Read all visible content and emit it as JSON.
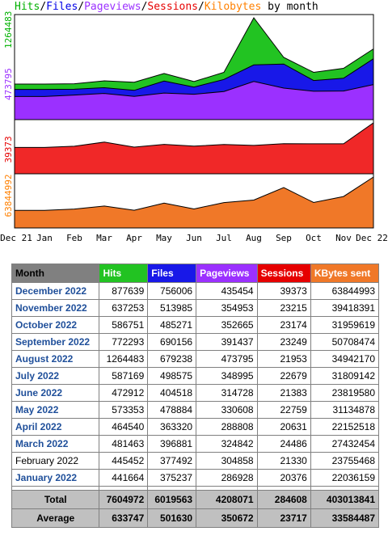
{
  "title": {
    "parts": [
      {
        "text": "Hits",
        "color": "#00b000"
      },
      {
        "text": "/",
        "color": "#000000"
      },
      {
        "text": "Files",
        "color": "#0000e6"
      },
      {
        "text": "/",
        "color": "#000000"
      },
      {
        "text": "Pageviews",
        "color": "#9b30ff"
      },
      {
        "text": "/",
        "color": "#000000"
      },
      {
        "text": "Sessions",
        "color": "#e60000"
      },
      {
        "text": "/",
        "color": "#000000"
      },
      {
        "text": "Kilobytes",
        "color": "#ff8000"
      },
      {
        "text": " by month",
        "color": "#000000"
      }
    ]
  },
  "chart_data": {
    "type": "area",
    "categories": [
      "Dec 21",
      "Jan",
      "Feb",
      "Mar",
      "Apr",
      "May",
      "Jun",
      "Jul",
      "Aug",
      "Sep",
      "Oct",
      "Nov",
      "Dec 22"
    ],
    "panels": [
      {
        "axis_label": "1264483",
        "axis_color": "#00b000",
        "ymax": 1264483,
        "series": [
          {
            "name": "Hits",
            "color": "#22c322",
            "values": [
              441664,
              441664,
              445452,
              481463,
              464540,
              573353,
              472912,
              587169,
              1264483,
              772293,
              586751,
              637253,
              877639
            ]
          },
          {
            "name": "Files",
            "color": "#1818e8",
            "values": [
              375237,
              375237,
              377492,
              396881,
              363320,
              478884,
              404518,
              498575,
              679238,
              690156,
              485271,
              513985,
              756006
            ]
          },
          {
            "name": "Pageviews",
            "color": "#9b30ff",
            "values": [
              286928,
              286928,
              304858,
              324842,
              288808,
              330608,
              314728,
              348995,
              473795,
              391437,
              352665,
              354953,
              435454
            ]
          }
        ],
        "extra_label": "473795",
        "extra_label_color": "#9b30ff"
      },
      {
        "axis_label": "39373",
        "axis_color": "#e60000",
        "ymax": 39373,
        "series": [
          {
            "name": "Sessions",
            "color": "#f02828",
            "values": [
              20376,
              20376,
              21330,
              24486,
              20631,
              22759,
              21383,
              22679,
              21953,
              23249,
              23174,
              23215,
              39373
            ]
          }
        ]
      },
      {
        "axis_label": "63844992",
        "axis_color": "#ff8000",
        "ymax": 63844993,
        "series": [
          {
            "name": "Kilobytes",
            "color": "#f07828",
            "values": [
              22036159,
              22036159,
              23755468,
              27432454,
              22152518,
              31134878,
              23819580,
              31809142,
              34942170,
              50708474,
              31959619,
              39418391,
              63844993
            ]
          }
        ]
      }
    ]
  },
  "table": {
    "headers": [
      {
        "label": "Month",
        "bg": "#808080"
      },
      {
        "label": "Hits",
        "bg": "#22c322"
      },
      {
        "label": "Files",
        "bg": "#1818e8"
      },
      {
        "label": "Pageviews",
        "bg": "#9b30ff"
      },
      {
        "label": "Sessions",
        "bg": "#e60000"
      },
      {
        "label": "KBytes sent",
        "bg": "#f07828"
      }
    ],
    "rows": [
      {
        "month": "December 2022",
        "link": true,
        "hits": "877639",
        "files": "756006",
        "pageviews": "435454",
        "sessions": "39373",
        "kbytes": "63844993"
      },
      {
        "month": "November 2022",
        "link": true,
        "hits": "637253",
        "files": "513985",
        "pageviews": "354953",
        "sessions": "23215",
        "kbytes": "39418391"
      },
      {
        "month": "October 2022",
        "link": true,
        "hits": "586751",
        "files": "485271",
        "pageviews": "352665",
        "sessions": "23174",
        "kbytes": "31959619"
      },
      {
        "month": "September 2022",
        "link": true,
        "hits": "772293",
        "files": "690156",
        "pageviews": "391437",
        "sessions": "23249",
        "kbytes": "50708474"
      },
      {
        "month": "August 2022",
        "link": true,
        "hits": "1264483",
        "files": "679238",
        "pageviews": "473795",
        "sessions": "21953",
        "kbytes": "34942170"
      },
      {
        "month": "July 2022",
        "link": true,
        "hits": "587169",
        "files": "498575",
        "pageviews": "348995",
        "sessions": "22679",
        "kbytes": "31809142"
      },
      {
        "month": "June 2022",
        "link": true,
        "hits": "472912",
        "files": "404518",
        "pageviews": "314728",
        "sessions": "21383",
        "kbytes": "23819580"
      },
      {
        "month": "May 2022",
        "link": true,
        "hits": "573353",
        "files": "478884",
        "pageviews": "330608",
        "sessions": "22759",
        "kbytes": "31134878"
      },
      {
        "month": "April 2022",
        "link": true,
        "hits": "464540",
        "files": "363320",
        "pageviews": "288808",
        "sessions": "20631",
        "kbytes": "22152518"
      },
      {
        "month": "March 2022",
        "link": true,
        "hits": "481463",
        "files": "396881",
        "pageviews": "324842",
        "sessions": "24486",
        "kbytes": "27432454"
      },
      {
        "month": "February 2022",
        "link": false,
        "hits": "445452",
        "files": "377492",
        "pageviews": "304858",
        "sessions": "21330",
        "kbytes": "23755468"
      },
      {
        "month": "January 2022",
        "link": true,
        "hits": "441664",
        "files": "375237",
        "pageviews": "286928",
        "sessions": "20376",
        "kbytes": "22036159"
      }
    ],
    "total": {
      "label": "Total",
      "hits": "7604972",
      "files": "6019563",
      "pageviews": "4208071",
      "sessions": "284608",
      "kbytes": "403013841"
    },
    "average": {
      "label": "Average",
      "hits": "633747",
      "files": "501630",
      "pageviews": "350672",
      "sessions": "23717",
      "kbytes": "33584487"
    }
  }
}
